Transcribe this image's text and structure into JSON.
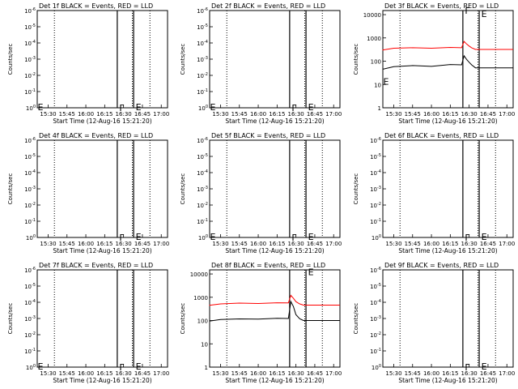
{
  "figure": {
    "xlabel": "Start Time (12-Aug-16 15:21:20)",
    "ylabel": "Counts/sec",
    "colors": {
      "events": "#000000",
      "lld": "#ff0000"
    },
    "x_tick_labels": [
      "15:30",
      "15:45",
      "16:00",
      "16:15",
      "16:30",
      "16:45",
      "17:00"
    ]
  },
  "chart_data": [
    {
      "type": "line",
      "title": "Det 1f BLACK = Events, RED = LLD",
      "log_y": true,
      "y_tick_labels": [
        "10^0",
        "10^-1",
        "10^-2",
        "10^-3",
        "10^-4",
        "10^-5",
        "10^-6"
      ],
      "ylim": [
        1,
        1e-06
      ],
      "xlim": [
        "15:21:20",
        "17:05"
      ],
      "dotted_vlines": [
        "15:35",
        "16:37",
        "16:51"
      ],
      "solid_vlines": [
        "16:25",
        "16:38"
      ],
      "markers": [
        {
          "text": "E",
          "x": "15:21",
          "y": 1.4
        },
        {
          "text": "F",
          "x": "16:26",
          "y": 1.6
        },
        {
          "text": "E",
          "x": "16:39",
          "y": 1.4
        }
      ],
      "series": []
    },
    {
      "type": "line",
      "title": "Det 2f BLACK = Events, RED = LLD",
      "log_y": true,
      "y_tick_labels": [
        "10^0",
        "10^-1",
        "10^-2",
        "10^-3",
        "10^-4",
        "10^-5",
        "10^-6"
      ],
      "ylim": [
        1,
        1e-06
      ],
      "xlim": [
        "15:21:20",
        "17:05"
      ],
      "dotted_vlines": [
        "15:35",
        "16:37",
        "16:51"
      ],
      "solid_vlines": [
        "16:25",
        "16:38"
      ],
      "markers": [
        {
          "text": "E",
          "x": "15:21",
          "y": 1.4
        },
        {
          "text": "F",
          "x": "16:26",
          "y": 1.6
        },
        {
          "text": "E",
          "x": "16:39",
          "y": 1.4
        }
      ],
      "series": []
    },
    {
      "type": "line",
      "title": "Det 3f BLACK = Events, RED = LLD",
      "log_y": true,
      "y_tick_labels": [
        "1",
        "10",
        "100",
        "1000",
        "10000"
      ],
      "ylim": [
        1,
        15000
      ],
      "xlim": [
        "15:21:20",
        "17:05"
      ],
      "dotted_vlines": [
        "15:35",
        "16:37",
        "16:51"
      ],
      "solid_vlines": [
        "16:25",
        "16:38"
      ],
      "markers": [
        {
          "text": "E",
          "x": "15:21",
          "y": 10
        },
        {
          "text": "F",
          "x": "16:26",
          "y": 11000
        },
        {
          "text": "E",
          "x": "16:39",
          "y": 8000
        }
      ],
      "series": [
        {
          "name": "LLD",
          "color": "#ff0000",
          "x": [
            "15:21",
            "15:30",
            "15:45",
            "16:00",
            "16:15",
            "16:24",
            "16:26",
            "16:28",
            "16:30",
            "16:32",
            "16:35",
            "17:05"
          ],
          "y": [
            300,
            360,
            380,
            360,
            390,
            380,
            700,
            550,
            450,
            380,
            320,
            320
          ]
        },
        {
          "name": "Events",
          "color": "#000000",
          "x": [
            "15:21",
            "15:30",
            "15:45",
            "16:00",
            "16:15",
            "16:24",
            "16:26",
            "16:28",
            "16:30",
            "16:32",
            "16:35",
            "17:05"
          ],
          "y": [
            45,
            58,
            65,
            60,
            72,
            70,
            170,
            120,
            90,
            70,
            52,
            52
          ]
        }
      ]
    },
    {
      "type": "line",
      "title": "Det 4f BLACK = Events, RED = LLD",
      "log_y": true,
      "y_tick_labels": [
        "10^0",
        "10^-1",
        "10^-2",
        "10^-3",
        "10^-4",
        "10^-5",
        "10^-6"
      ],
      "ylim": [
        1,
        1e-06
      ],
      "xlim": [
        "15:21:20",
        "17:05"
      ],
      "dotted_vlines": [
        "15:35",
        "16:37",
        "16:51"
      ],
      "solid_vlines": [
        "16:25",
        "16:38"
      ],
      "markers": [
        {
          "text": "F",
          "x": "16:26",
          "y": 1.6
        },
        {
          "text": "E",
          "x": "16:39",
          "y": 1.4
        }
      ],
      "series": []
    },
    {
      "type": "line",
      "title": "Det 5f BLACK = Events, RED = LLD",
      "log_y": true,
      "y_tick_labels": [
        "10^0",
        "10^-1",
        "10^-2",
        "10^-3",
        "10^-4",
        "10^-5",
        "10^-6"
      ],
      "ylim": [
        1,
        1e-06
      ],
      "xlim": [
        "15:21:20",
        "17:05"
      ],
      "dotted_vlines": [
        "15:35",
        "16:37",
        "16:51"
      ],
      "solid_vlines": [
        "16:25",
        "16:38"
      ],
      "markers": [
        {
          "text": "E",
          "x": "15:21",
          "y": 1.4
        },
        {
          "text": "F",
          "x": "16:26",
          "y": 1.6
        },
        {
          "text": "E",
          "x": "16:39",
          "y": 1.4
        }
      ],
      "series": []
    },
    {
      "type": "line",
      "title": "Det 6f BLACK = Events, RED = LLD",
      "log_y": true,
      "y_tick_labels": [
        "10^0",
        "10^-1",
        "10^-2",
        "10^-3",
        "10^-4",
        "10^-5",
        "10^-6"
      ],
      "ylim": [
        1,
        1e-06
      ],
      "xlim": [
        "15:21:20",
        "17:05"
      ],
      "dotted_vlines": [
        "15:35",
        "16:37",
        "16:51"
      ],
      "solid_vlines": [
        "16:25",
        "16:38"
      ],
      "markers": [
        {
          "text": "F",
          "x": "16:26",
          "y": 1.6
        },
        {
          "text": "E",
          "x": "16:39",
          "y": 1.4
        }
      ],
      "series": []
    },
    {
      "type": "line",
      "title": "Det 7f BLACK = Events, RED = LLD",
      "log_y": true,
      "y_tick_labels": [
        "10^0",
        "10^-1",
        "10^-2",
        "10^-3",
        "10^-4",
        "10^-5",
        "10^-6"
      ],
      "ylim": [
        1,
        1e-06
      ],
      "xlim": [
        "15:21:20",
        "17:05"
      ],
      "dotted_vlines": [
        "15:35",
        "16:37",
        "16:51"
      ],
      "solid_vlines": [
        "16:25",
        "16:38"
      ],
      "markers": [
        {
          "text": "E",
          "x": "15:21",
          "y": 1.4
        },
        {
          "text": "F",
          "x": "16:26",
          "y": 1.6
        },
        {
          "text": "E",
          "x": "16:39",
          "y": 1.4
        }
      ],
      "series": []
    },
    {
      "type": "line",
      "title": "Det 8f BLACK = Events, RED = LLD",
      "log_y": true,
      "y_tick_labels": [
        "1",
        "10",
        "100",
        "1000",
        "10000"
      ],
      "ylim": [
        1,
        15000
      ],
      "xlim": [
        "15:21:20",
        "17:05"
      ],
      "dotted_vlines": [
        "15:35",
        "16:37",
        "16:51"
      ],
      "solid_vlines": [
        "16:25",
        "16:38"
      ],
      "markers": [
        {
          "text": "E",
          "x": "16:39",
          "y": 9000
        }
      ],
      "series": [
        {
          "name": "LLD",
          "color": "#ff0000",
          "x": [
            "15:21",
            "15:30",
            "15:45",
            "16:00",
            "16:15",
            "16:24",
            "16:26",
            "16:28",
            "16:30",
            "16:33",
            "16:36",
            "17:05"
          ],
          "y": [
            450,
            520,
            560,
            540,
            580,
            570,
            1200,
            900,
            650,
            520,
            460,
            460
          ]
        },
        {
          "name": "Events",
          "color": "#000000",
          "x": [
            "15:21",
            "15:30",
            "15:45",
            "16:00",
            "16:15",
            "16:24",
            "16:26",
            "16:28",
            "16:30",
            "16:33",
            "16:36",
            "17:05"
          ],
          "y": [
            95,
            110,
            118,
            115,
            125,
            122,
            650,
            400,
            180,
            120,
            100,
            100
          ]
        }
      ]
    },
    {
      "type": "line",
      "title": "Det 9f BLACK = Events, RED = LLD",
      "log_y": true,
      "y_tick_labels": [
        "10^0",
        "10^-1",
        "10^-2",
        "10^-3",
        "10^-4",
        "10^-5",
        "10^-6"
      ],
      "ylim": [
        1,
        1e-06
      ],
      "xlim": [
        "15:21:20",
        "17:05"
      ],
      "dotted_vlines": [
        "15:35",
        "16:37",
        "16:51"
      ],
      "solid_vlines": [
        "16:25",
        "16:38"
      ],
      "markers": [
        {
          "text": "F",
          "x": "16:26",
          "y": 1.6
        },
        {
          "text": "E",
          "x": "16:39",
          "y": 1.4
        }
      ],
      "series": []
    }
  ]
}
